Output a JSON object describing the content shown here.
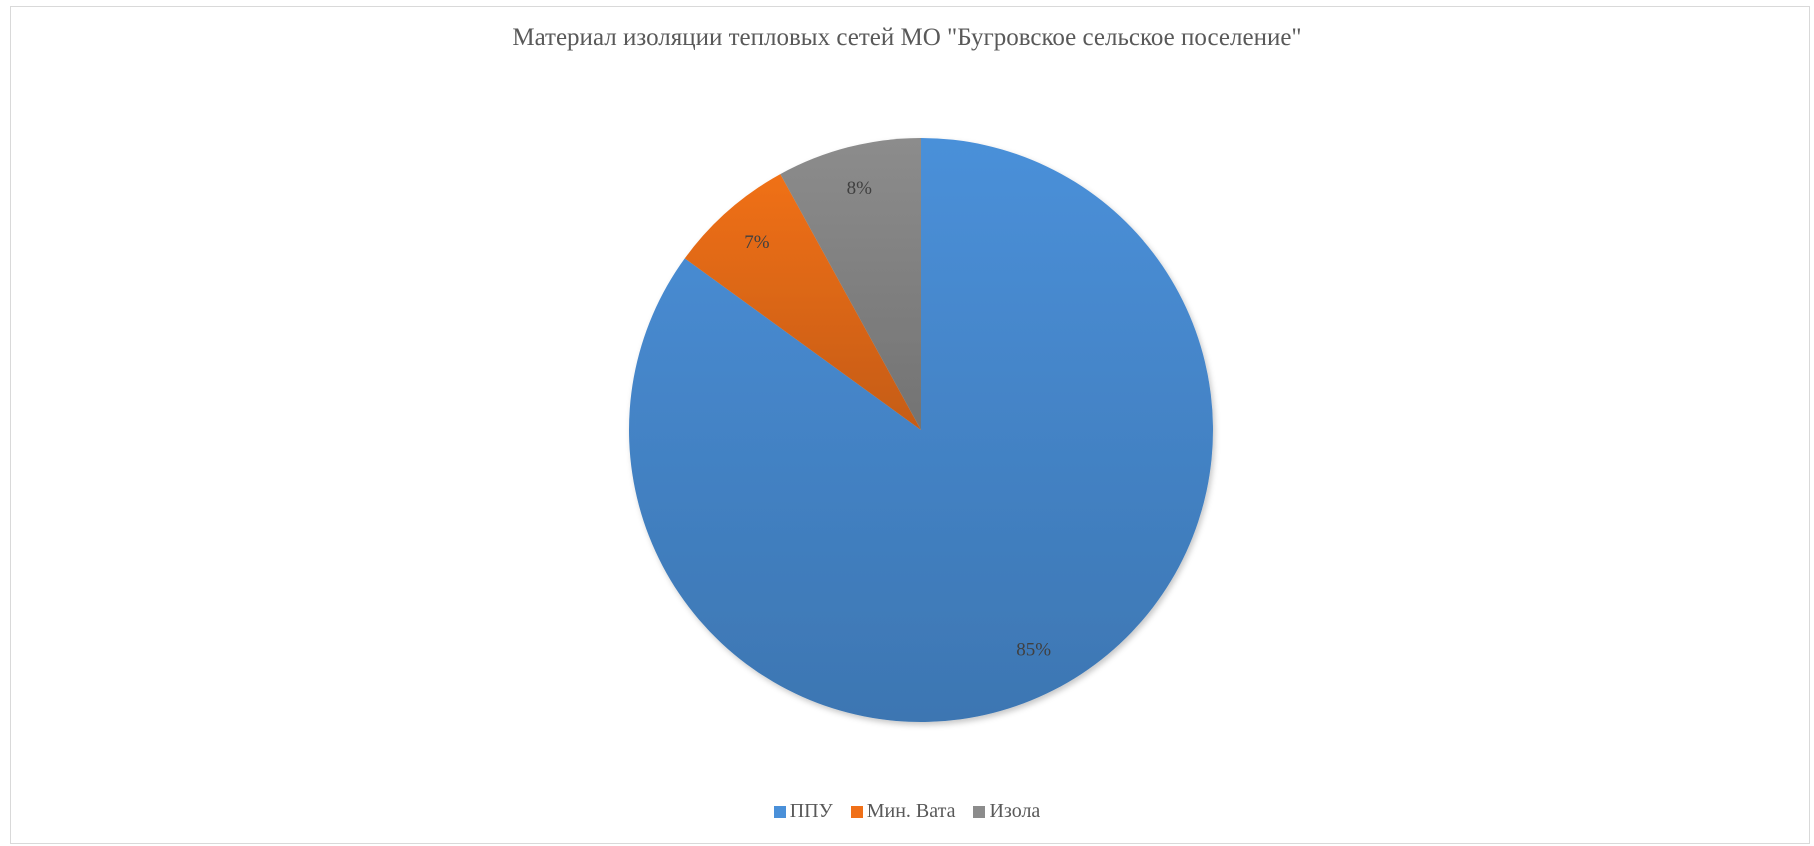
{
  "chart_data": {
    "type": "pie",
    "title": "Материал изоляции тепловых сетей МО \"Бугровское сельское поселение\"",
    "slices": [
      {
        "label": "ППУ",
        "value": 85,
        "data_label": "85%",
        "color": "#4a90d9"
      },
      {
        "label": "Мин. Вата",
        "value": 7,
        "data_label": "7%",
        "color": "#f07018"
      },
      {
        "label": "Изола",
        "value": 8,
        "data_label": "8%",
        "color": "#8c8c8c"
      }
    ],
    "start_angle": "12 o'clock",
    "direction": "clockwise",
    "legend_position": "bottom"
  }
}
